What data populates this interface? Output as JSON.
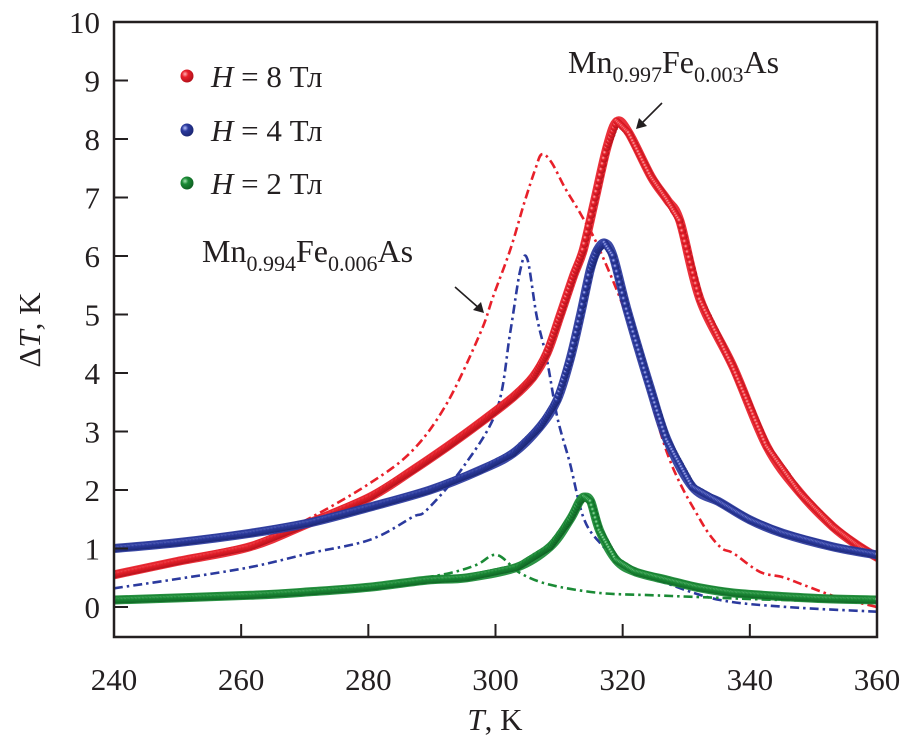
{
  "chart_data": {
    "type": "scatter",
    "title": "",
    "xlabel": {
      "italic": "T",
      "rest": ", K"
    },
    "ylabel": {
      "prefix": "Δ",
      "italic": "T",
      "rest": ", K"
    },
    "xlim": [
      240,
      360
    ],
    "ylim": [
      -0.5,
      10
    ],
    "xticks": [
      240,
      260,
      280,
      300,
      320,
      340,
      360
    ],
    "yticks": [
      0,
      1,
      2,
      3,
      4,
      5,
      6,
      7,
      8,
      9,
      10
    ],
    "grid": false,
    "legend": {
      "placement": "top-left",
      "entries": [
        {
          "symbol": "H",
          "text": " = 8 Тл",
          "color": "#e8202a"
        },
        {
          "symbol": "H",
          "text": " = 4 Тл",
          "color": "#2b3a9e"
        },
        {
          "symbol": "H",
          "text": " = 2 Тл",
          "color": "#1a8a35"
        }
      ]
    },
    "annotations": [
      {
        "base1": "Mn",
        "sub1": "0.997",
        "base2": "Fe",
        "sub2": "0.003",
        "base3": "As",
        "points_to": "solid marker curves (peak ~319 K)"
      },
      {
        "base1": "Mn",
        "sub1": "0.994",
        "base2": "Fe",
        "sub2": "0.006",
        "base3": "As",
        "points_to": "dash-dot curves"
      }
    ],
    "series": [
      {
        "name": "Mn0.997Fe0.003As, H = 8 Тл",
        "style": "markers",
        "color": "#e8202a",
        "x": [
          240,
          250,
          261.4,
          270.8,
          280.3,
          287,
          292.4,
          297.6,
          302.8,
          305.9,
          308.1,
          310.1,
          312.2,
          313.8,
          315.5,
          317.5,
          319.1,
          321,
          324.5,
          327,
          329,
          332.2,
          337.4,
          342.7,
          347.9,
          353.1,
          357,
          360
        ],
        "y": [
          0.55,
          0.78,
          1.03,
          1.44,
          1.88,
          2.34,
          2.74,
          3.15,
          3.59,
          3.93,
          4.34,
          4.96,
          5.64,
          6.1,
          6.9,
          7.85,
          8.3,
          8.1,
          7.35,
          6.96,
          6.6,
          5.25,
          4.1,
          2.74,
          1.95,
          1.37,
          1.05,
          0.85
        ]
      },
      {
        "name": "Mn0.997Fe0.003As, H = 4 Тл",
        "style": "markers",
        "color": "#2b3a9e",
        "x": [
          240,
          250,
          261.4,
          270.8,
          280.3,
          289.7,
          297.6,
          302.8,
          307,
          309.7,
          311.7,
          313.3,
          314.9,
          316,
          317.2,
          318.5,
          320.7,
          324.3,
          327,
          331,
          335.3,
          340,
          345.2,
          353,
          360
        ],
        "y": [
          1.0,
          1.1,
          1.26,
          1.44,
          1.71,
          2.0,
          2.34,
          2.63,
          3.08,
          3.54,
          4.22,
          4.96,
          5.76,
          6.1,
          6.22,
          6.0,
          5.08,
          3.76,
          2.85,
          2.05,
          1.79,
          1.49,
          1.26,
          1.03,
          0.89
        ]
      },
      {
        "name": "Mn0.997Fe0.003As, H = 2 Тл",
        "style": "markers",
        "color": "#1a8a35",
        "x": [
          240,
          261.4,
          270.8,
          280.3,
          289.2,
          295.5,
          303.4,
          308.6,
          311.7,
          313.2,
          314,
          315,
          316.4,
          319,
          322,
          327,
          332,
          337.4,
          345,
          352,
          360
        ],
        "y": [
          0.12,
          0.2,
          0.26,
          0.34,
          0.46,
          0.5,
          0.68,
          1.03,
          1.49,
          1.8,
          1.88,
          1.8,
          1.3,
          0.8,
          0.6,
          0.46,
          0.33,
          0.24,
          0.18,
          0.14,
          0.12
        ]
      },
      {
        "name": "Mn0.994Fe0.006As, H = 8 Тл",
        "style": "dash-dot",
        "color": "#e8202a",
        "x": [
          261.4,
          270.8,
          280.3,
          287,
          292.4,
          297.6,
          299.6,
          302.3,
          304.5,
          306.3,
          307.3,
          308.8,
          311,
          313.5,
          316.4,
          321.6,
          327,
          332.2,
          335.3,
          337.4,
          341.6,
          345.2,
          348.4,
          353.7,
          360
        ],
        "y": [
          1.03,
          1.52,
          2.12,
          2.68,
          3.49,
          4.68,
          5.3,
          6.1,
          6.9,
          7.5,
          7.74,
          7.6,
          7.15,
          6.7,
          6.1,
          4.68,
          2.63,
          1.49,
          1.03,
          0.92,
          0.6,
          0.51,
          0.38,
          0.17,
          0.0
        ]
      },
      {
        "name": "Mn0.994Fe0.006As, H = 4 Тл",
        "style": "dash-dot",
        "color": "#2b3a9e",
        "x": [
          240,
          250,
          261.4,
          270.8,
          280.3,
          287,
          289.2,
          294.9,
          300.2,
          302.3,
          303.9,
          305,
          306.5,
          308.1,
          309.7,
          311.7,
          313.8,
          316.4,
          321,
          327,
          335.3,
          345.8,
          360
        ],
        "y": [
          0.32,
          0.48,
          0.68,
          0.92,
          1.15,
          1.54,
          1.66,
          2.39,
          3.37,
          4.68,
          5.76,
          5.95,
          4.96,
          4.22,
          3.25,
          2.46,
          1.54,
          1.1,
          0.65,
          0.4,
          0.12,
          0.0,
          -0.08
        ]
      },
      {
        "name": "Mn0.994Fe0.006As, H = 2 Тл",
        "style": "dash-dot",
        "color": "#1a8a35",
        "x": [
          261.4,
          270.8,
          280.3,
          285,
          292.8,
          297,
          300.2,
          303.9,
          308.6,
          316.4,
          325,
          332,
          345,
          360
        ],
        "y": [
          0.22,
          0.28,
          0.36,
          0.43,
          0.58,
          0.72,
          0.89,
          0.58,
          0.38,
          0.24,
          0.2,
          0.17,
          0.12,
          0.09
        ]
      }
    ]
  }
}
